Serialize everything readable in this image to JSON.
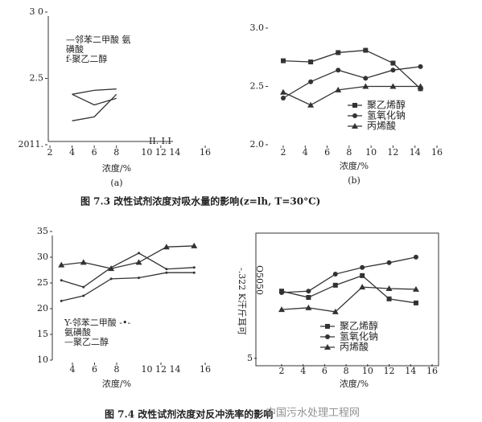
{
  "captions": [
    "图 7.3 改性试剂浓度对吸水量的影响(z=lh, T=30°C)",
    "图 7.4 改性试剂浓度对反冲洗率的影响"
  ],
  "watermark": "中国污水处理工程网",
  "chart_data": [
    {
      "type": "line",
      "xlabel": "浓度/%",
      "sublabel": "(a)",
      "legend_text": [
        "—邻苯二甲酸 氨",
        "磺酸",
        "f-聚乙二醇"
      ],
      "annotation": "II. I.I",
      "xlim": [
        2,
        16
      ],
      "ylim": [
        2,
        3
      ],
      "xticks": [
        2,
        4,
        6,
        8,
        {
          "value": 12,
          "label": "10 12 14"
        },
        16
      ],
      "yticks": [
        {
          "value": 3,
          "label": "3 0"
        },
        2.5,
        {
          "value": 2,
          "label": "2011."
        }
      ],
      "x": [
        4,
        6,
        8
      ],
      "series": [
        {
          "color": "#333",
          "values": [
            2.38,
            2.41,
            2.42
          ]
        },
        {
          "color": "#333",
          "values": [
            2.38,
            2.3,
            2.35
          ]
        },
        {
          "color": "#333",
          "values": [
            2.18,
            2.21,
            2.38
          ]
        }
      ]
    },
    {
      "type": "line",
      "xlabel": "浓度/%",
      "sublabel": "(b)",
      "xlim": [
        2,
        16
      ],
      "ylim": [
        2,
        3
      ],
      "xticks": [
        2,
        4,
        6,
        8,
        10,
        12,
        14,
        16
      ],
      "yticks": [
        {
          "value": 3,
          "label": "3.0"
        },
        2.5,
        {
          "value": 2,
          "label": "2.0"
        }
      ],
      "x": [
        2,
        4.5,
        7,
        9.5,
        12,
        14.5
      ],
      "series": [
        {
          "name": "聚乙烯醇",
          "color": "#333",
          "marker": "square",
          "values": [
            2.72,
            2.71,
            2.79,
            2.81,
            2.7,
            2.48
          ]
        },
        {
          "name": "氢氧化钠",
          "color": "#333",
          "marker": "circle",
          "values": [
            2.4,
            2.54,
            2.64,
            2.57,
            2.64,
            2.67
          ]
        },
        {
          "name": "丙烯酸",
          "color": "#333",
          "marker": "triangle",
          "values": [
            2.45,
            2.34,
            2.47,
            2.5,
            2.5,
            2.5
          ]
        }
      ]
    },
    {
      "type": "line",
      "xlabel": "浓度/%",
      "legend_text": [
        "Y-邻苯二甲酸 -•-",
        "氨磺酸",
        "—聚乙二醇"
      ],
      "xlim": [
        2,
        16
      ],
      "ylim": [
        10,
        35
      ],
      "xticks": [
        4,
        6,
        8,
        {
          "value": 12,
          "label": "10 12 14"
        },
        16
      ],
      "yticks": [
        10,
        15,
        20,
        25,
        30,
        35
      ],
      "x": [
        3,
        5,
        7.5,
        10,
        12.5,
        15
      ],
      "series": [
        {
          "color": "#333",
          "marker": "triangle",
          "values": [
            28.5,
            29,
            27.8,
            29,
            32,
            32.2
          ]
        },
        {
          "color": "#333",
          "marker": "dot",
          "values": [
            25.5,
            24.2,
            28,
            30.8,
            27.7,
            28
          ]
        },
        {
          "color": "#333",
          "marker": "dot",
          "values": [
            21.5,
            22.5,
            25.8,
            26,
            27,
            27
          ]
        }
      ]
    },
    {
      "type": "line",
      "xlabel": "浓度/%",
      "ylabel": "-.322 K汗斤耳可",
      "annotation": "O5050",
      "xlim": [
        2,
        16
      ],
      "ylim": [
        3,
        40
      ],
      "xticks": [
        2,
        4,
        6,
        8,
        10,
        12,
        14,
        16
      ],
      "yticks": [
        5
      ],
      "x": [
        2,
        4.5,
        7,
        9.5,
        12,
        14.5
      ],
      "series": [
        {
          "name": "聚乙烯醇",
          "color": "#333",
          "marker": "square",
          "values": [
            23.2,
            21.5,
            24.8,
            27.4,
            21.1,
            20
          ]
        },
        {
          "name": "氢氧化钠",
          "color": "#333",
          "marker": "circle",
          "values": [
            22.8,
            23.2,
            27.8,
            29.6,
            30.9,
            32.4
          ]
        },
        {
          "name": "丙烯酸",
          "color": "#333",
          "marker": "triangle",
          "values": [
            18.2,
            18.7,
            17.6,
            24.3,
            23.9,
            23.7
          ]
        }
      ]
    }
  ]
}
